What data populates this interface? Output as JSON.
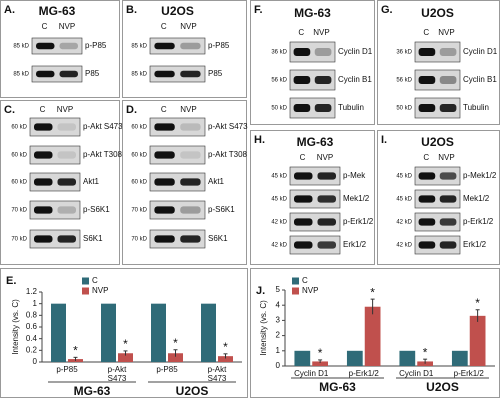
{
  "panels": [
    {
      "label": "A.",
      "title": "MG-63",
      "lanes": [
        "C",
        "NVP"
      ],
      "rows": [
        {
          "kd": "85 kD",
          "name": "p-P85"
        },
        {
          "kd": "85 kD",
          "name": "P85"
        }
      ]
    },
    {
      "label": "B.",
      "title": "U2OS",
      "lanes": [
        "C",
        "NVP"
      ],
      "rows": [
        {
          "kd": "85 kD",
          "name": "p-P85"
        },
        {
          "kd": "85 kD",
          "name": "P85"
        }
      ]
    },
    {
      "label": "C.",
      "lanes": [
        "C",
        "NVP"
      ],
      "rows": [
        {
          "kd": "60 kD",
          "name": "p-Akt S473"
        },
        {
          "kd": "60 kD",
          "name": "p-Akt T308"
        },
        {
          "kd": "60 kD",
          "name": "Akt1"
        },
        {
          "kd": "70 kD",
          "name": "p-S6K1"
        },
        {
          "kd": "70 kD",
          "name": "S6K1"
        }
      ]
    },
    {
      "label": "D.",
      "lanes": [
        "C",
        "NVP"
      ],
      "rows": [
        {
          "kd": "60 kD",
          "name": "p-Akt S473"
        },
        {
          "kd": "60 kD",
          "name": "p-Akt T308"
        },
        {
          "kd": "60 kD",
          "name": "Akt1"
        },
        {
          "kd": "70 kD",
          "name": "p-S6K1"
        },
        {
          "kd": "70 kD",
          "name": "S6K1"
        }
      ]
    },
    {
      "label": "F.",
      "title": "MG-63",
      "lanes": [
        "C",
        "NVP"
      ],
      "rows": [
        {
          "kd": "36 kD",
          "name": "Cyclin D1"
        },
        {
          "kd": "56 kD",
          "name": "Cyclin B1"
        },
        {
          "kd": "50 kD",
          "name": "Tubulin"
        }
      ]
    },
    {
      "label": "G.",
      "title": "U2OS",
      "lanes": [
        "C",
        "NVP"
      ],
      "rows": [
        {
          "kd": "36 kD",
          "name": "Cyclin D1"
        },
        {
          "kd": "56 kD",
          "name": "Cyclin B1"
        },
        {
          "kd": "50 kD",
          "name": "Tubulin"
        }
      ]
    },
    {
      "label": "H.",
      "title": "MG-63",
      "lanes": [
        "C",
        "NVP"
      ],
      "rows": [
        {
          "kd": "45 kD",
          "name": "p-Mek"
        },
        {
          "kd": "45 kD",
          "name": "Mek1/2"
        },
        {
          "kd": "42 kD",
          "name": "p-Erk1/2"
        },
        {
          "kd": "42 kD",
          "name": "Erk1/2"
        }
      ]
    },
    {
      "label": "I.",
      "title": "U2OS",
      "lanes": [
        "C",
        "NVP"
      ],
      "rows": [
        {
          "kd": "45 kD",
          "name": "p-Mek1/2"
        },
        {
          "kd": "45 kD",
          "name": "Mek1/2"
        },
        {
          "kd": "42 kD",
          "name": "p-Erk1/2"
        },
        {
          "kd": "42 kD",
          "name": "Erk1/2"
        }
      ]
    }
  ],
  "chart_data": [
    {
      "type": "bar",
      "label": "E.",
      "ylabel": "Intensity (vs. C)",
      "categories": [
        "p-P85",
        "p-Akt S473",
        "p-P85",
        "p-Akt S473"
      ],
      "groups": [
        "MG-63",
        "U2OS"
      ],
      "series": [
        {
          "name": "C",
          "color": "#2f6b78",
          "values": [
            1,
            1,
            1,
            1
          ]
        },
        {
          "name": "NVP",
          "color": "#c0504d",
          "values": [
            0.05,
            0.15,
            0.15,
            0.1
          ],
          "errors": [
            0.03,
            0.04,
            0.06,
            0.04
          ],
          "annotations": [
            "*",
            "*",
            "*",
            "*"
          ]
        }
      ],
      "ylim": [
        0,
        1.2
      ],
      "yticks": [
        0,
        0.2,
        0.4,
        0.6,
        0.8,
        1,
        1.2
      ]
    },
    {
      "type": "bar",
      "label": "J.",
      "ylabel": "Intensity (vs. C)",
      "categories": [
        "Cyclin D1",
        "p-Erk1/2",
        "Cyclin D1",
        "p-Erk1/2"
      ],
      "groups": [
        "MG-63",
        "U2OS"
      ],
      "series": [
        {
          "name": "C",
          "color": "#2f6b78",
          "values": [
            1,
            1,
            1,
            1
          ]
        },
        {
          "name": "NVP",
          "color": "#c0504d",
          "values": [
            0.3,
            3.9,
            0.3,
            3.3
          ],
          "errors": [
            0.1,
            0.5,
            0.15,
            0.4
          ],
          "annotations": [
            "*",
            "*",
            "*",
            "*"
          ]
        }
      ],
      "ylim": [
        0,
        5
      ],
      "yticks": [
        0,
        1,
        2,
        3,
        4,
        5
      ]
    }
  ]
}
